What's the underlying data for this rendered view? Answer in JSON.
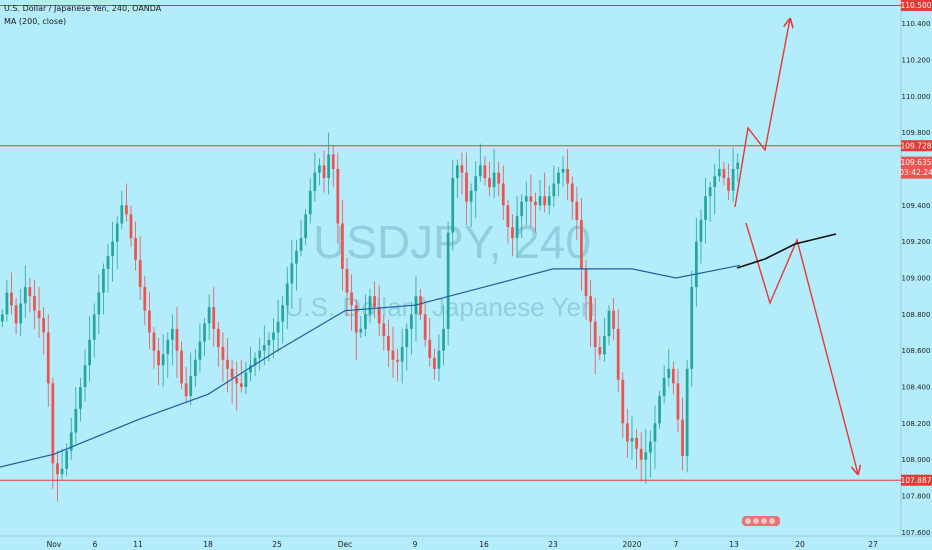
{
  "header": {
    "symbol_line": "U.S. Dollar / Japanese Yen, 240, OANDA",
    "indicator_line": "MA (200, close)"
  },
  "watermark": {
    "ticker": "USDJPY, 240",
    "name": "U.S. Dollar / Japanese Yen"
  },
  "price_badges": {
    "last_price": "109.635",
    "countdown": "03:42:24"
  },
  "colors": {
    "background": "#b3ecfa",
    "up_candle": "#26a69a",
    "down_candle": "#ef5350",
    "ma_line": "#1f5f9e",
    "levels": "#e53935",
    "projection": "#e53935",
    "projection_black": "#111111",
    "axis_text": "#222222"
  },
  "chart_data": {
    "type": "candlestick",
    "title": "U.S. Dollar / Japanese Yen, 240, OANDA",
    "x_tick_labels": [
      "Nov",
      "6",
      "11",
      "18",
      "25",
      "Dec",
      "9",
      "16",
      "23",
      "2020",
      "7",
      "13",
      "20",
      "27"
    ],
    "y_tick_labels": [
      "110.400",
      "110.200",
      "110.000",
      "109.800",
      "109.400",
      "109.200",
      "109.000",
      "108.800",
      "108.600",
      "108.400",
      "108.200",
      "108.000",
      "107.800",
      "107.600"
    ],
    "y_ticks": [
      110.4,
      110.2,
      110.0,
      109.8,
      109.4,
      109.2,
      109.0,
      108.8,
      108.6,
      108.4,
      108.2,
      108.0,
      107.8,
      107.6
    ],
    "ylim": [
      107.58,
      110.53
    ],
    "closes": [
      108.8,
      108.92,
      108.85,
      108.75,
      108.86,
      108.95,
      108.9,
      108.82,
      108.78,
      108.7,
      108.42,
      107.98,
      107.92,
      107.95,
      108.05,
      108.15,
      108.28,
      108.4,
      108.52,
      108.66,
      108.8,
      108.92,
      109.05,
      109.12,
      109.2,
      109.3,
      109.4,
      109.35,
      109.22,
      109.1,
      108.95,
      108.82,
      108.7,
      108.6,
      108.52,
      108.58,
      108.66,
      108.72,
      108.6,
      108.42,
      108.35,
      108.46,
      108.55,
      108.65,
      108.75,
      108.84,
      108.72,
      108.62,
      108.55,
      108.5,
      108.45,
      108.42,
      108.4,
      108.48,
      108.52,
      108.56,
      108.6,
      108.63,
      108.66,
      108.7,
      108.76,
      108.85,
      108.97,
      109.08,
      109.15,
      109.22,
      109.35,
      109.48,
      109.58,
      109.62,
      109.55,
      109.68,
      109.6,
      109.3,
      109.05,
      108.92,
      108.85,
      108.7,
      108.72,
      108.8,
      108.9,
      108.84,
      108.75,
      108.68,
      108.6,
      108.55,
      108.54,
      108.62,
      108.72,
      108.8,
      108.9,
      108.8,
      108.66,
      108.56,
      108.5,
      108.6,
      108.72,
      109.25,
      109.55,
      109.62,
      109.58,
      109.42,
      109.48,
      109.56,
      109.62,
      109.55,
      109.5,
      109.58,
      109.52,
      109.4,
      109.28,
      109.22,
      109.34,
      109.42,
      109.45,
      109.42,
      109.4,
      109.45,
      109.4,
      109.45,
      109.52,
      109.58,
      109.6,
      109.52,
      109.42,
      109.32,
      109.05,
      108.9,
      108.76,
      108.62,
      108.58,
      108.68,
      108.82,
      108.72,
      108.44,
      108.2,
      108.1,
      108.12,
      108.06,
      108.0,
      108.04,
      108.1,
      108.2,
      108.35,
      108.45,
      108.5,
      108.42,
      108.22,
      108.02,
      108.5,
      108.95,
      109.2,
      109.32,
      109.45,
      109.5,
      109.56,
      109.6,
      109.55,
      109.48,
      109.6,
      109.635
    ],
    "ma_200": {
      "name": "MA (200, close)",
      "x_dates": [
        "Nov",
        "11",
        "18",
        "25",
        "Dec",
        "9",
        "16",
        "23",
        "2020",
        "7"
      ],
      "values": [
        108.03,
        108.22,
        108.36,
        108.6,
        108.82,
        108.85,
        108.95,
        109.05,
        109.05,
        109.0
      ]
    },
    "levels": [
      110.5,
      109.728,
      107.887
    ],
    "level_labels": [
      "110.500",
      "109.728",
      "107.887"
    ],
    "last_price": 109.635
  }
}
